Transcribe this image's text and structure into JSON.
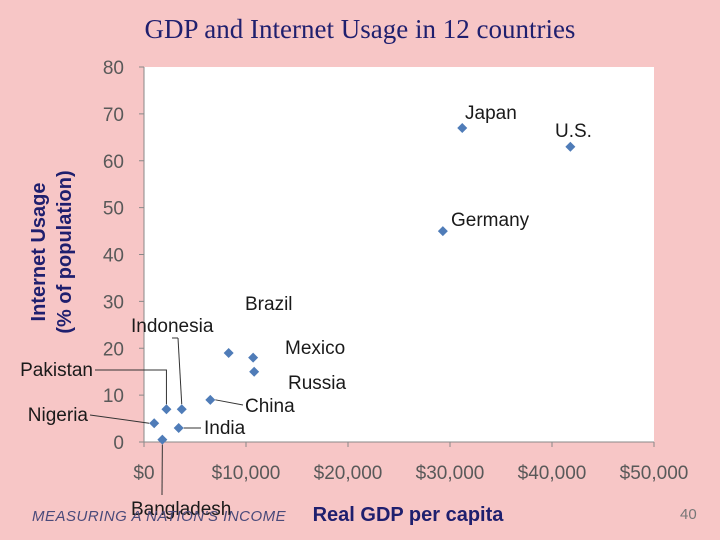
{
  "slide": {
    "title": "GDP and Internet Usage in 12 countries",
    "footer": "MEASURING A NATION'S INCOME",
    "page_number": "40"
  },
  "colors": {
    "background": "#f7c6c6",
    "plot_area": "#ffffff",
    "marker": "#4f7cb8",
    "title": "#1f1f6e"
  },
  "chart_data": {
    "type": "scatter",
    "title": "GDP and Internet Usage in 12 countries",
    "xlabel": "Real GDP per capita",
    "ylabel": "Internet Usage (% of population)",
    "ylabel_lines": [
      "Internet Usage",
      "(% of population)"
    ],
    "xlim": [
      0,
      50000
    ],
    "ylim": [
      0,
      80
    ],
    "x_ticks": [
      0,
      10000,
      20000,
      30000,
      40000,
      50000
    ],
    "x_tick_labels": [
      "$0",
      "$10,000",
      "$20,000",
      "$30,000",
      "$40,000",
      "$50,000"
    ],
    "y_ticks": [
      0,
      10,
      20,
      30,
      40,
      50,
      60,
      70,
      80
    ],
    "y_tick_labels": [
      "0",
      "10",
      "20",
      "30",
      "40",
      "50",
      "60",
      "70",
      "80"
    ],
    "grid": false,
    "marker": "diamond",
    "points": [
      {
        "label": "U.S.",
        "x": 41800,
        "y": 63
      },
      {
        "label": "Japan",
        "x": 31200,
        "y": 67
      },
      {
        "label": "Germany",
        "x": 29300,
        "y": 45
      },
      {
        "label": "Brazil",
        "x": 8300,
        "y": 19
      },
      {
        "label": "Mexico",
        "x": 10700,
        "y": 18
      },
      {
        "label": "Russia",
        "x": 10800,
        "y": 15
      },
      {
        "label": "China",
        "x": 6500,
        "y": 9
      },
      {
        "label": "Indonesia",
        "x": 3700,
        "y": 7
      },
      {
        "label": "Pakistan",
        "x": 2200,
        "y": 7
      },
      {
        "label": "Nigeria",
        "x": 1000,
        "y": 4
      },
      {
        "label": "India",
        "x": 3400,
        "y": 3
      },
      {
        "label": "Bangladesh",
        "x": 1800,
        "y": 0.5
      }
    ]
  }
}
